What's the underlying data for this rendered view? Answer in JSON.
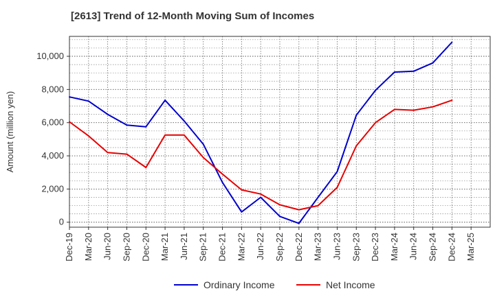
{
  "chart_data": {
    "type": "line",
    "title": "[2613]  Trend of 12-Month Moving Sum of Incomes",
    "xlabel": "",
    "ylabel": "Amount (million yen)",
    "ylim": [
      -300,
      11200
    ],
    "y_ticks": [
      0,
      2000,
      4000,
      6000,
      8000,
      10000
    ],
    "y_tick_labels": [
      "0",
      "2,000",
      "4,000",
      "6,000",
      "8,000",
      "10,000"
    ],
    "categories": [
      "Dec-19",
      "Mar-20",
      "Jun-20",
      "Sep-20",
      "Dec-20",
      "Mar-21",
      "Jun-21",
      "Sep-21",
      "Dec-21",
      "Mar-22",
      "Jun-22",
      "Sep-22",
      "Dec-22",
      "Mar-23",
      "Jun-23",
      "Sep-23",
      "Dec-23",
      "Mar-24",
      "Jun-24",
      "Sep-24",
      "Dec-24",
      "Mar-25"
    ],
    "grid": true,
    "legend_position": "bottom-center",
    "series": [
      {
        "name": "Ordinary Income",
        "color": "#0000cc",
        "values": [
          7550,
          7300,
          6500,
          5850,
          5750,
          7350,
          6100,
          4700,
          2400,
          620,
          1500,
          350,
          -70,
          1500,
          3050,
          6450,
          7950,
          9050,
          9100,
          9600,
          10850,
          null
        ]
      },
      {
        "name": "Net Income",
        "color": "#e60000",
        "values": [
          6050,
          5200,
          4200,
          4100,
          3300,
          5250,
          5250,
          3900,
          2900,
          1950,
          1700,
          1050,
          750,
          1000,
          2100,
          4600,
          6000,
          6800,
          6750,
          6950,
          7350,
          null
        ]
      }
    ]
  }
}
